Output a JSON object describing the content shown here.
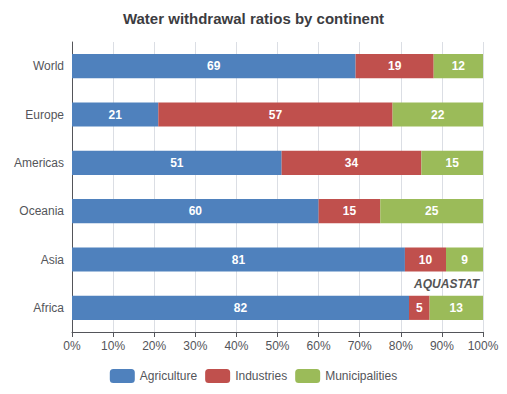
{
  "chart_data": {
    "type": "bar",
    "orientation": "horizontal",
    "stacked": true,
    "title": "Water withdrawal ratios by continent",
    "categories": [
      "Africa",
      "Asia",
      "Oceania",
      "Americas",
      "Europe",
      "World"
    ],
    "series": [
      {
        "name": "Agriculture",
        "color": "#4F81BD",
        "values": [
          82,
          81,
          60,
          51,
          21,
          69
        ]
      },
      {
        "name": "Industries",
        "color": "#C0504D",
        "values": [
          5,
          10,
          15,
          34,
          57,
          19
        ]
      },
      {
        "name": "Municipalities",
        "color": "#9BBB59",
        "values": [
          13,
          9,
          25,
          15,
          22,
          12
        ]
      }
    ],
    "xlim": [
      0,
      100
    ],
    "xticks": [
      {
        "value": 0,
        "label": "0%"
      },
      {
        "value": 10,
        "label": "10%"
      },
      {
        "value": 20,
        "label": "20%"
      },
      {
        "value": 30,
        "label": "30%"
      },
      {
        "value": 40,
        "label": "40%"
      },
      {
        "value": 50,
        "label": "50%"
      },
      {
        "value": 60,
        "label": "60%"
      },
      {
        "value": 70,
        "label": "70%"
      },
      {
        "value": 80,
        "label": "80%"
      },
      {
        "value": 90,
        "label": "90%"
      },
      {
        "value": 100,
        "label": "100%"
      }
    ],
    "grid": true,
    "data_labels": true,
    "legend": "bottom",
    "annotations": [
      "AQUASTAT"
    ]
  }
}
